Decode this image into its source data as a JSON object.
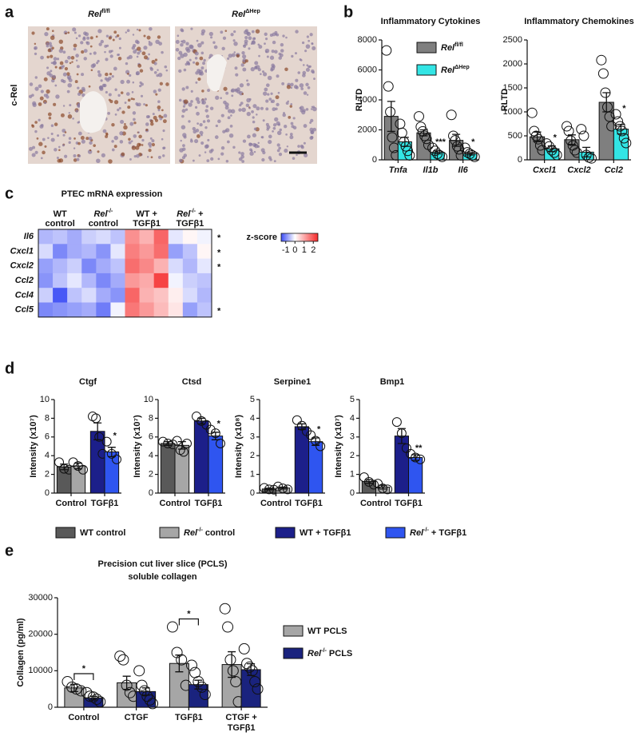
{
  "panel_a": {
    "label": "a",
    "titles": [
      [
        "Rel",
        "fl/fl"
      ],
      [
        "Rel",
        "ΔHep"
      ]
    ],
    "stain": "c-Rel"
  },
  "chart_data": [
    {
      "type": "bar",
      "label": "b",
      "legend": "inside",
      "series": [
        {
          "name": [
            "Rel",
            "fl/fl"
          ],
          "color": "#7f7f7f"
        },
        {
          "name": [
            "Rel",
            "ΔHep"
          ],
          "color": "#33e5e5"
        }
      ],
      "panels": [
        {
          "title": "Inflammatory Cytokines",
          "ylabel": "RLTD",
          "categories": [
            "Tnfa",
            "Il1b",
            "Il6"
          ],
          "ylim": [
            0,
            8000
          ],
          "yticks": [
            0,
            2000,
            4000,
            6000,
            8000
          ],
          "values": [
            [
              2900,
              1800,
              1300
            ],
            [
              1200,
              500,
              400
            ]
          ],
          "errors": [
            [
              1000,
              200,
              400
            ],
            [
              300,
              100,
              80
            ]
          ],
          "points": [
            [
              [
                7300,
                4900,
                3200,
                1500,
                800,
                300
              ],
              [
                2900,
                2200,
                1900,
                1600,
                1400,
                1000
              ],
              [
                3000,
                1600,
                1300,
                900,
                700,
                300
              ]
            ],
            [
              [
                2400,
                1800,
                1200,
                900,
                600,
                300
              ],
              [
                800,
                600,
                400,
                300,
                200
              ],
              [
                800,
                500,
                400,
                300,
                200
              ]
            ]
          ],
          "significance": [
            [
              null,
              null,
              null
            ],
            [
              null,
              "***",
              "*"
            ]
          ]
        },
        {
          "title": "Inflammatory Chemokines",
          "ylabel": "RLTD",
          "categories": [
            "Cxcl1",
            "Cxcl2",
            "Ccl2"
          ],
          "ylim": [
            0,
            2500
          ],
          "yticks": [
            0,
            500,
            1000,
            1500,
            2000,
            2500
          ],
          "values": [
            [
              480,
              420,
              1200
            ],
            [
              230,
              160,
              640
            ]
          ],
          "errors": [
            [
              100,
              100,
              200
            ],
            [
              60,
              100,
              100
            ]
          ],
          "points": [
            [
              [
                980,
                600,
                500,
                430,
                300,
                200
              ],
              [
                700,
                600,
                400,
                300,
                200,
                150
              ],
              [
                2080,
                1800,
                1400,
                1100,
                900,
                700
              ]
            ],
            [
              [
                340,
                280,
                200,
                150,
                100
              ],
              [
                640,
                500,
                100,
                50,
                30
              ],
              [
                950,
                800,
                700,
                600,
                450,
                350
              ]
            ]
          ],
          "significance": [
            [
              null,
              null,
              null
            ],
            [
              "*",
              null,
              "*"
            ]
          ]
        }
      ]
    },
    {
      "type": "heatmap",
      "label": "c",
      "title": "PTEC mRNA expression",
      "column_groups": [
        [
          "WT",
          "control"
        ],
        [
          [
            "Rel",
            "-/-"
          ],
          "control"
        ],
        [
          "WT +",
          "TGFβ1"
        ],
        [
          [
            "Rel",
            "-/-",
            " +"
          ],
          "TGFβ1"
        ]
      ],
      "rows": [
        "Il6",
        "Cxcl1",
        "Cxcl2",
        "Ccl2",
        "Ccl4",
        "Ccl5"
      ],
      "row_significance": [
        "*",
        "*",
        "*",
        null,
        null,
        "*"
      ],
      "values": [
        [
          -0.6,
          -0.5,
          -0.7,
          -0.4,
          -0.3,
          -0.5,
          1.3,
          0.9,
          1.8,
          -0.2,
          0.1,
          -0.1
        ],
        [
          -0.3,
          -1.0,
          -0.7,
          -0.6,
          -0.9,
          -0.2,
          1.5,
          1.2,
          1.7,
          -0.8,
          -0.5,
          0.1
        ],
        [
          -0.8,
          -0.6,
          -0.4,
          -1.0,
          -0.7,
          -0.5,
          1.7,
          1.4,
          0.9,
          -0.3,
          -0.6,
          -0.2
        ],
        [
          -0.9,
          -0.5,
          -0.2,
          -0.6,
          -1.0,
          -0.7,
          1.2,
          1.0,
          2.2,
          -0.1,
          -0.4,
          -0.5
        ],
        [
          -0.4,
          -1.4,
          -0.5,
          -0.3,
          -0.7,
          -0.9,
          1.8,
          0.9,
          0.7,
          0.2,
          -0.3,
          -0.6
        ],
        [
          -1.0,
          -0.9,
          -0.8,
          -0.7,
          -1.1,
          -0.1,
          1.6,
          1.2,
          0.8,
          0.3,
          -0.8,
          -0.5
        ]
      ],
      "colorbar": {
        "label": "z-score",
        "lim": [
          -1.5,
          2.5
        ],
        "ticks": [
          -1,
          0,
          1,
          2
        ]
      },
      "colors": [
        "#3b4cf5",
        "#ffffff",
        "#f52a2a"
      ]
    },
    {
      "type": "bar",
      "label": "d",
      "legend": "bottom",
      "series": [
        {
          "name": "WT control",
          "color": "#595959"
        },
        {
          "name": [
            "Rel",
            "-/-",
            " control"
          ],
          "color": "#a6a6a6"
        },
        {
          "name": "WT + TGFβ1",
          "color": "#1c1f8a"
        },
        {
          "name": [
            "Rel",
            "-/-",
            " + TGFβ1"
          ],
          "color": "#2f55f0"
        }
      ],
      "panels": [
        {
          "title": "Ctgf",
          "ylabel": "Intensity (x10⁷)",
          "categories": [
            "Control",
            "TGFβ1"
          ],
          "ylim": [
            0,
            10
          ],
          "yticks": [
            0,
            2,
            4,
            6,
            8,
            10
          ],
          "values": [
            [
              2.8,
              null
            ],
            [
              2.9,
              null
            ],
            [
              null,
              6.6
            ],
            [
              null,
              4.4
            ]
          ],
          "errors": [
            [
              0.3,
              null
            ],
            [
              0.3,
              null
            ],
            [
              null,
              0.9
            ],
            [
              null,
              0.5
            ]
          ],
          "points": [
            [
              [
                3.3,
                2.6,
                2.5
              ],
              null
            ],
            [
              [
                3.3,
                2.9,
                2.5
              ],
              null
            ],
            [
              null,
              [
                8.2,
                8.0,
                6.0,
                4.2
              ]
            ],
            [
              null,
              [
                5.5,
                4.2,
                3.6
              ]
            ]
          ],
          "significance": [
            [
              null,
              null
            ],
            [
              null,
              null
            ],
            [
              null,
              null
            ],
            [
              null,
              "*"
            ]
          ]
        },
        {
          "title": "Ctsd",
          "ylabel": "Intensity (x10⁷)",
          "categories": [
            "Control",
            "TGFβ1"
          ],
          "ylim": [
            0,
            10
          ],
          "yticks": [
            0,
            2,
            4,
            6,
            8,
            10
          ],
          "values": [
            [
              5.3,
              null
            ],
            [
              5.1,
              null
            ],
            [
              null,
              7.7
            ],
            [
              null,
              6.1
            ]
          ],
          "errors": [
            [
              0.2,
              null
            ],
            [
              0.4,
              null
            ],
            [
              null,
              0.3
            ],
            [
              null,
              0.4
            ]
          ],
          "points": [
            [
              [
                5.5,
                5.3,
                5.2
              ],
              null
            ],
            [
              [
                5.6,
                4.6,
                4.4,
                5.3
              ],
              null
            ],
            [
              null,
              [
                8.2,
                7.7,
                7.3
              ]
            ],
            [
              null,
              [
                6.8,
                6.4,
                5.3
              ]
            ]
          ],
          "significance": [
            [
              null,
              null
            ],
            [
              null,
              null
            ],
            [
              null,
              null
            ],
            [
              null,
              "*"
            ]
          ]
        },
        {
          "title": "Serpine1",
          "ylabel": "Intensity (x10⁸)",
          "categories": [
            "Control",
            "TGFβ1"
          ],
          "ylim": [
            0,
            5
          ],
          "yticks": [
            0,
            1,
            2,
            3,
            4,
            5
          ],
          "values": [
            [
              0.22,
              null
            ],
            [
              0.27,
              null
            ],
            [
              null,
              3.55
            ],
            [
              null,
              2.75
            ]
          ],
          "errors": [
            [
              0.04,
              null
            ],
            [
              0.05,
              null
            ],
            [
              null,
              0.15
            ],
            [
              null,
              0.2
            ]
          ],
          "points": [
            [
              [
                0.28,
                0.2,
                0.18
              ],
              null
            ],
            [
              [
                0.35,
                0.25,
                0.2
              ],
              null
            ],
            [
              null,
              [
                3.9,
                3.6,
                3.3
              ]
            ],
            [
              null,
              [
                3.1,
                2.8,
                2.5
              ]
            ]
          ],
          "significance": [
            [
              null,
              null
            ],
            [
              null,
              null
            ],
            [
              null,
              null
            ],
            [
              null,
              "*"
            ]
          ]
        },
        {
          "title": "Bmp1",
          "ylabel": "Intensity (x10⁷)",
          "categories": [
            "Control",
            "TGFβ1"
          ],
          "ylim": [
            0,
            5
          ],
          "yticks": [
            0,
            1,
            2,
            3,
            4,
            5
          ],
          "values": [
            [
              0.62,
              null
            ],
            [
              0.32,
              null
            ],
            [
              null,
              3.05
            ],
            [
              null,
              1.9
            ]
          ],
          "errors": [
            [
              0.1,
              null
            ],
            [
              0.1,
              null
            ],
            [
              null,
              0.4
            ],
            [
              null,
              0.15
            ]
          ],
          "points": [
            [
              [
                0.85,
                0.6,
                0.45
              ],
              null
            ],
            [
              [
                0.5,
                0.25,
                0.2
              ],
              null
            ],
            [
              null,
              [
                3.8,
                3.2,
                2.4
              ]
            ],
            [
              null,
              [
                2.1,
                1.9,
                1.8
              ]
            ]
          ],
          "significance": [
            [
              null,
              null
            ],
            [
              null,
              null
            ],
            [
              null,
              null
            ],
            [
              null,
              "**"
            ]
          ]
        }
      ]
    },
    {
      "type": "bar",
      "label": "e",
      "legend": "right",
      "series": [
        {
          "name": "WT PCLS",
          "color": "#a6a6a6"
        },
        {
          "name": [
            "Rel",
            "-/-",
            " PCLS"
          ],
          "color": "#1a237e"
        }
      ],
      "panels": [
        {
          "title": [
            "Precision cut liver slice (PCLS)",
            "soluble collagen"
          ],
          "ylabel": "Collagen (pg/ml)",
          "categories": [
            "Control",
            "CTGF",
            "TGFβ1",
            [
              "CTGF +",
              "TGFβ1"
            ]
          ],
          "ylim": [
            0,
            30000
          ],
          "yticks": [
            0,
            10000,
            20000,
            30000
          ],
          "values": [
            [
              5300,
              6700,
              12000,
              11700
            ],
            [
              2500,
              4300,
              6200,
              10300
            ]
          ],
          "errors": [
            [
              1000,
              1800,
              2300,
              3500
            ],
            [
              500,
              1000,
              1200,
              1600
            ]
          ],
          "points": [
            [
              [
                7000,
                5500,
                5000,
                4500
              ],
              [
                14000,
                13000,
                6000,
                4000,
                3000
              ],
              [
                22000,
                15000,
                13000,
                6000
              ],
              [
                27000,
                22000,
                13000,
                10000,
                7000,
                1500
              ]
            ],
            [
              [
                4000,
                3000,
                2800,
                2200,
                1500
              ],
              [
                10000,
                6000,
                4500,
                3000,
                2000,
                1000
              ],
              [
                11500,
                9500,
                7000,
                5500,
                3500
              ],
              [
                16000,
                12000,
                11000,
                10000,
                7000,
                5000
              ]
            ]
          ],
          "brackets": [
            "*",
            null,
            "*",
            null
          ]
        }
      ]
    }
  ]
}
